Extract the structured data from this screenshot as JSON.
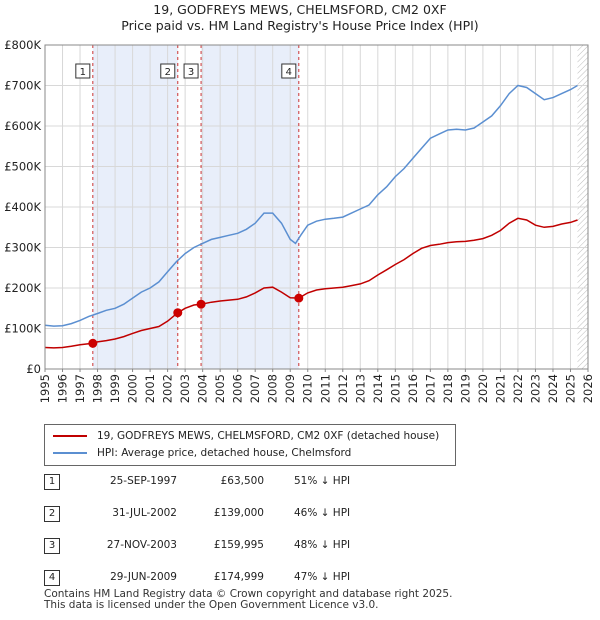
{
  "title_line1": "19, GODFREYS MEWS, CHELMSFORD, CM2 0XF",
  "title_line2": "Price paid vs. HM Land Registry's House Price Index (HPI)",
  "legend": {
    "property_label": "19, GODFREYS MEWS, CHELMSFORD, CM2 0XF (detached house)",
    "hpi_label": "HPI: Average price, detached house, Chelmsford"
  },
  "transactions": [
    {
      "num": "1",
      "date": "25-SEP-1997",
      "price": "£63,500",
      "hpi": "51% ↓ HPI"
    },
    {
      "num": "2",
      "date": "31-JUL-2002",
      "price": "£139,000",
      "hpi": "46% ↓ HPI"
    },
    {
      "num": "3",
      "date": "27-NOV-2003",
      "price": "£159,995",
      "hpi": "48% ↓ HPI"
    },
    {
      "num": "4",
      "date": "29-JUN-2009",
      "price": "£174,999",
      "hpi": "47% ↓ HPI"
    }
  ],
  "footer": {
    "line1": "Contains HM Land Registry data © Crown copyright and database right 2025.",
    "line2": "This data is licensed under the Open Government Licence v3.0."
  },
  "chart_data": {
    "type": "line",
    "title": "19, GODFREYS MEWS, CHELMSFORD, CM2 0XF — Price paid vs. HM Land Registry's House Price Index (HPI)",
    "xlim": [
      1995,
      2026
    ],
    "ylim": [
      0,
      800000
    ],
    "x_ticks": [
      "1995",
      "1996",
      "1997",
      "1998",
      "1999",
      "2000",
      "2001",
      "2002",
      "2003",
      "2004",
      "2005",
      "2006",
      "2007",
      "2008",
      "2009",
      "2010",
      "2011",
      "2012",
      "2013",
      "2014",
      "2015",
      "2016",
      "2017",
      "2018",
      "2019",
      "2020",
      "2021",
      "2022",
      "2023",
      "2024",
      "2025",
      "2026"
    ],
    "y_ticks": [
      {
        "value": 0,
        "label": "£0"
      },
      {
        "value": 100000,
        "label": "£100K"
      },
      {
        "value": 200000,
        "label": "£200K"
      },
      {
        "value": 300000,
        "label": "£300K"
      },
      {
        "value": 400000,
        "label": "£400K"
      },
      {
        "value": 500000,
        "label": "£500K"
      },
      {
        "value": 600000,
        "label": "£600K"
      },
      {
        "value": 700000,
        "label": "£700K"
      },
      {
        "value": 800000,
        "label": "£800K"
      }
    ],
    "series": [
      {
        "name": "HPI: Average price, detached house, Chelmsford",
        "color": "#5b8fd1",
        "x": [
          1995,
          1995.5,
          1996,
          1996.5,
          1997,
          1997.5,
          1998,
          1998.5,
          1999,
          1999.5,
          2000,
          2000.5,
          2001,
          2001.5,
          2002,
          2002.5,
          2003,
          2003.5,
          2004,
          2004.5,
          2005,
          2005.5,
          2006,
          2006.5,
          2007,
          2007.5,
          2008,
          2008.5,
          2009,
          2009.3,
          2009.6,
          2010,
          2010.5,
          2011,
          2011.5,
          2012,
          2012.5,
          2013,
          2013.5,
          2014,
          2014.5,
          2015,
          2015.5,
          2016,
          2016.5,
          2017,
          2017.5,
          2018,
          2018.5,
          2019,
          2019.5,
          2020,
          2020.5,
          2021,
          2021.5,
          2022,
          2022.5,
          2023,
          2023.5,
          2024,
          2024.5,
          2025,
          2025.4
        ],
        "values": [
          108000,
          106000,
          107000,
          112000,
          120000,
          130000,
          137000,
          145000,
          150000,
          160000,
          175000,
          190000,
          200000,
          215000,
          240000,
          265000,
          285000,
          300000,
          310000,
          320000,
          325000,
          330000,
          335000,
          345000,
          360000,
          385000,
          385000,
          360000,
          320000,
          310000,
          330000,
          355000,
          365000,
          370000,
          372000,
          375000,
          385000,
          395000,
          405000,
          430000,
          450000,
          475000,
          495000,
          520000,
          545000,
          570000,
          580000,
          590000,
          592000,
          590000,
          595000,
          610000,
          625000,
          650000,
          680000,
          700000,
          695000,
          680000,
          665000,
          670000,
          680000,
          690000,
          700000
        ]
      },
      {
        "name": "19, GODFREYS MEWS, CHELMSFORD, CM2 0XF (detached house)",
        "color": "#c00000",
        "x": [
          1995,
          1995.5,
          1996,
          1996.5,
          1997,
          1997.73,
          1998,
          1998.5,
          1999,
          1999.5,
          2000,
          2000.5,
          2001,
          2001.5,
          2002,
          2002.58,
          2003,
          2003.5,
          2003.91,
          2004.5,
          2005,
          2005.5,
          2006,
          2006.5,
          2007,
          2007.5,
          2008,
          2008.5,
          2009,
          2009.49,
          2010,
          2010.5,
          2011,
          2011.5,
          2012,
          2012.5,
          2013,
          2013.5,
          2014,
          2014.5,
          2015,
          2015.5,
          2016,
          2016.5,
          2017,
          2017.5,
          2018,
          2018.5,
          2019,
          2019.5,
          2020,
          2020.5,
          2021,
          2021.5,
          2022,
          2022.5,
          2023,
          2023.5,
          2024,
          2024.5,
          2025,
          2025.4
        ],
        "values": [
          53000,
          52000,
          53000,
          56000,
          60000,
          63500,
          67000,
          70000,
          74000,
          80000,
          88000,
          95000,
          100000,
          105000,
          118000,
          139000,
          150000,
          158000,
          159995,
          165000,
          168000,
          170000,
          172000,
          178000,
          188000,
          200000,
          202000,
          190000,
          176000,
          174999,
          188000,
          195000,
          198000,
          200000,
          202000,
          206000,
          210000,
          218000,
          232000,
          245000,
          258000,
          270000,
          285000,
          298000,
          305000,
          308000,
          312000,
          314000,
          315000,
          318000,
          322000,
          330000,
          342000,
          360000,
          372000,
          368000,
          355000,
          350000,
          352000,
          358000,
          362000,
          368000
        ]
      }
    ],
    "sales": [
      {
        "num": "1",
        "x": 1997.73,
        "value": 63500
      },
      {
        "num": "2",
        "x": 2002.58,
        "value": 139000
      },
      {
        "num": "3",
        "x": 2003.91,
        "value": 159995
      },
      {
        "num": "4",
        "x": 2009.49,
        "value": 174999
      }
    ],
    "shaded_ranges": [
      [
        1997.73,
        2002.58
      ],
      [
        2003.91,
        2009.49
      ]
    ],
    "hatch_from": 2025.4,
    "colors": {
      "shade": "#e8eefa",
      "grid": "#d8d8d8",
      "axis": "#888888",
      "vline": "#cc3333"
    }
  }
}
